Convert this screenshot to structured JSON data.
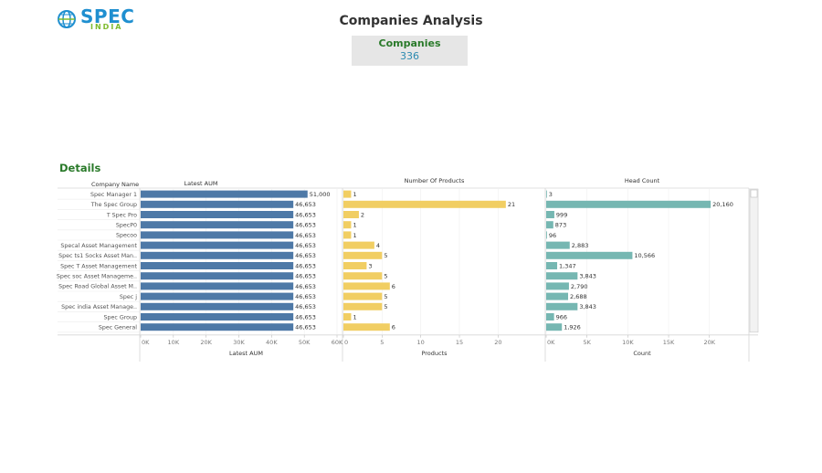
{
  "logo": {
    "word": "SPEC",
    "sub": "INDIA"
  },
  "page_title": "Companies Analysis",
  "kpi": {
    "label": "Companies",
    "value": "336"
  },
  "section_title": "Details",
  "chart_data": {
    "type": "bar",
    "orientation": "horizontal",
    "row_header": "Company Name",
    "categories": [
      "Spec Manager 1",
      "The Spec Group",
      "T Spec Pro",
      "SpecP0",
      "Specoo",
      "Specal Asset Management",
      "Spec ts1 Socks Asset Man..",
      "Spec T Asset Management",
      "Spec soc Asset Manageme..",
      "Spec Road Global Asset M..",
      "Spec j",
      "Spec india Asset Manage..",
      "Spec Group",
      "Spec General"
    ],
    "panels": [
      {
        "key": "aum",
        "header": "Latest AUM",
        "xlabel": "Latest AUM",
        "color": "#4e79a7",
        "xlim": [
          0,
          60000
        ],
        "ticks": [
          0,
          10000,
          20000,
          30000,
          40000,
          50000,
          60000
        ],
        "tick_labels": [
          "0K",
          "10K",
          "20K",
          "30K",
          "40K",
          "50K",
          "60K"
        ],
        "values": [
          51000,
          46653,
          46653,
          46653,
          46653,
          46653,
          46653,
          46653,
          46653,
          46653,
          46653,
          46653,
          46653,
          46653
        ],
        "value_labels": [
          "51,000",
          "46,653",
          "46,653",
          "46,653",
          "46,653",
          "46,653",
          "46,653",
          "46,653",
          "46,653",
          "46,653",
          "46,653",
          "46,653",
          "46,653",
          "46,653"
        ]
      },
      {
        "key": "products",
        "header": "Number Of Products",
        "xlabel": "Products",
        "color": "#f1ce63",
        "xlim": [
          0,
          23.5
        ],
        "ticks": [
          0,
          5,
          10,
          15,
          20
        ],
        "tick_labels": [
          "0",
          "5",
          "10",
          "15",
          "20"
        ],
        "values": [
          1,
          21,
          2,
          1,
          1,
          4,
          5,
          3,
          5,
          6,
          5,
          5,
          1,
          6
        ],
        "value_labels": [
          "1",
          "21",
          "2",
          "1",
          "1",
          "4",
          "5",
          "3",
          "5",
          "6",
          "5",
          "5",
          "1",
          "6"
        ]
      },
      {
        "key": "headcount",
        "header": "Head Count",
        "xlabel": "Count",
        "color": "#76b7b2",
        "xlim": [
          0,
          23500
        ],
        "ticks": [
          0,
          5000,
          10000,
          15000,
          20000
        ],
        "tick_labels": [
          "0K",
          "5K",
          "10K",
          "15K",
          "20K"
        ],
        "values": [
          3,
          20160,
          999,
          873,
          96,
          2883,
          10566,
          1347,
          3843,
          2790,
          2688,
          3843,
          966,
          1926
        ],
        "value_labels": [
          "3",
          "20,160",
          "999",
          "873",
          "96",
          "2,883",
          "10,566",
          "1,347",
          "3,843",
          "2,790",
          "2,688",
          "3,843",
          "966",
          "1,926"
        ]
      }
    ],
    "grid": "vertical"
  }
}
